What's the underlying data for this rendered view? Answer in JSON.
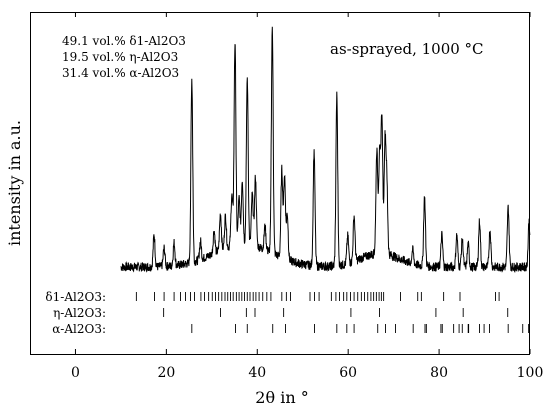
{
  "chart_data": {
    "type": "line",
    "title": "",
    "annotation": "as-sprayed, 1000 °C",
    "xlabel": "2θ in °",
    "ylabel": "intensity in a.u.",
    "xlim": [
      -10,
      100
    ],
    "x_ticks": [
      0,
      20,
      40,
      60,
      80,
      100
    ],
    "x_tick_labels": [
      "0",
      "20",
      "40",
      "60",
      "80",
      "100"
    ],
    "y_ticks_shown": false,
    "grid": false,
    "composition": [
      {
        "line": "49.1 vol.% δ1-Al2O3",
        "value": 49.1,
        "phase": "δ1-Al2O3"
      },
      {
        "line": "19.5 vol.% η-Al2O3",
        "value": 19.5,
        "phase": "η-Al2O3"
      },
      {
        "line": "31.4 vol.% α-Al2O3",
        "value": 31.4,
        "phase": "α-Al2O3"
      }
    ],
    "x_range_measured": [
      10,
      100
    ],
    "baseline_intensity": 8,
    "peaks": [
      {
        "x": 17.3,
        "h": 14
      },
      {
        "x": 19.5,
        "h": 8
      },
      {
        "x": 21.7,
        "h": 10
      },
      {
        "x": 25.6,
        "h": 80
      },
      {
        "x": 27.5,
        "h": 8
      },
      {
        "x": 30.5,
        "h": 10
      },
      {
        "x": 31.9,
        "h": 16
      },
      {
        "x": 33.0,
        "h": 14
      },
      {
        "x": 34.4,
        "h": 22
      },
      {
        "x": 35.1,
        "h": 88
      },
      {
        "x": 36.0,
        "h": 20
      },
      {
        "x": 36.7,
        "h": 28
      },
      {
        "x": 37.8,
        "h": 72
      },
      {
        "x": 38.9,
        "h": 22
      },
      {
        "x": 39.6,
        "h": 30
      },
      {
        "x": 41.7,
        "h": 10
      },
      {
        "x": 43.3,
        "h": 98
      },
      {
        "x": 45.4,
        "h": 38
      },
      {
        "x": 46.0,
        "h": 36
      },
      {
        "x": 46.6,
        "h": 20
      },
      {
        "x": 52.5,
        "h": 50
      },
      {
        "x": 57.5,
        "h": 74
      },
      {
        "x": 59.9,
        "h": 12
      },
      {
        "x": 61.3,
        "h": 20
      },
      {
        "x": 66.3,
        "h": 45
      },
      {
        "x": 66.9,
        "h": 42
      },
      {
        "x": 67.4,
        "h": 60
      },
      {
        "x": 68.1,
        "h": 48
      },
      {
        "x": 68.5,
        "h": 30
      },
      {
        "x": 74.2,
        "h": 6
      },
      {
        "x": 76.8,
        "h": 30
      },
      {
        "x": 80.6,
        "h": 14
      },
      {
        "x": 83.9,
        "h": 14
      },
      {
        "x": 85.1,
        "h": 12
      },
      {
        "x": 86.4,
        "h": 10
      },
      {
        "x": 88.9,
        "h": 20
      },
      {
        "x": 91.2,
        "h": 16
      },
      {
        "x": 95.2,
        "h": 26
      },
      {
        "x": 99.8,
        "h": 20
      }
    ],
    "reference_ticks": [
      {
        "label": "δ1-Al2O3:",
        "positions": [
          13.4,
          17.4,
          19.5,
          21.7,
          23.1,
          24.2,
          25.3,
          26.2,
          27.6,
          28.4,
          29.3,
          30.1,
          30.8,
          31.5,
          32.2,
          32.9,
          33.5,
          34.1,
          34.7,
          35.4,
          36.0,
          36.6,
          37.2,
          37.8,
          38.4,
          39.1,
          39.7,
          40.4,
          41.2,
          42.1,
          43.0,
          45.4,
          46.4,
          47.3,
          51.6,
          52.6,
          53.6,
          56.3,
          57.3,
          58.1,
          59.0,
          59.7,
          60.5,
          61.3,
          62.1,
          62.9,
          63.6,
          64.3,
          65.0,
          65.6,
          66.2,
          66.8,
          67.3,
          67.8,
          71.5,
          75.3,
          76.1,
          81.0,
          84.6,
          92.4,
          93.2
        ]
      },
      {
        "label": "η-Al2O3:",
        "positions": [
          19.4,
          31.9,
          37.6,
          39.5,
          45.8,
          60.6,
          66.9,
          79.3,
          85.3,
          95.1
        ]
      },
      {
        "label": "α-Al2O3:",
        "positions": [
          25.6,
          35.2,
          37.8,
          43.4,
          46.2,
          52.6,
          57.5,
          59.7,
          61.3,
          66.5,
          68.2,
          70.4,
          74.3,
          76.9,
          77.2,
          80.4,
          80.7,
          83.2,
          84.4,
          85.1,
          86.4,
          86.5,
          88.9,
          89.9,
          91.1,
          95.2,
          98.4,
          99.7
        ]
      }
    ]
  }
}
